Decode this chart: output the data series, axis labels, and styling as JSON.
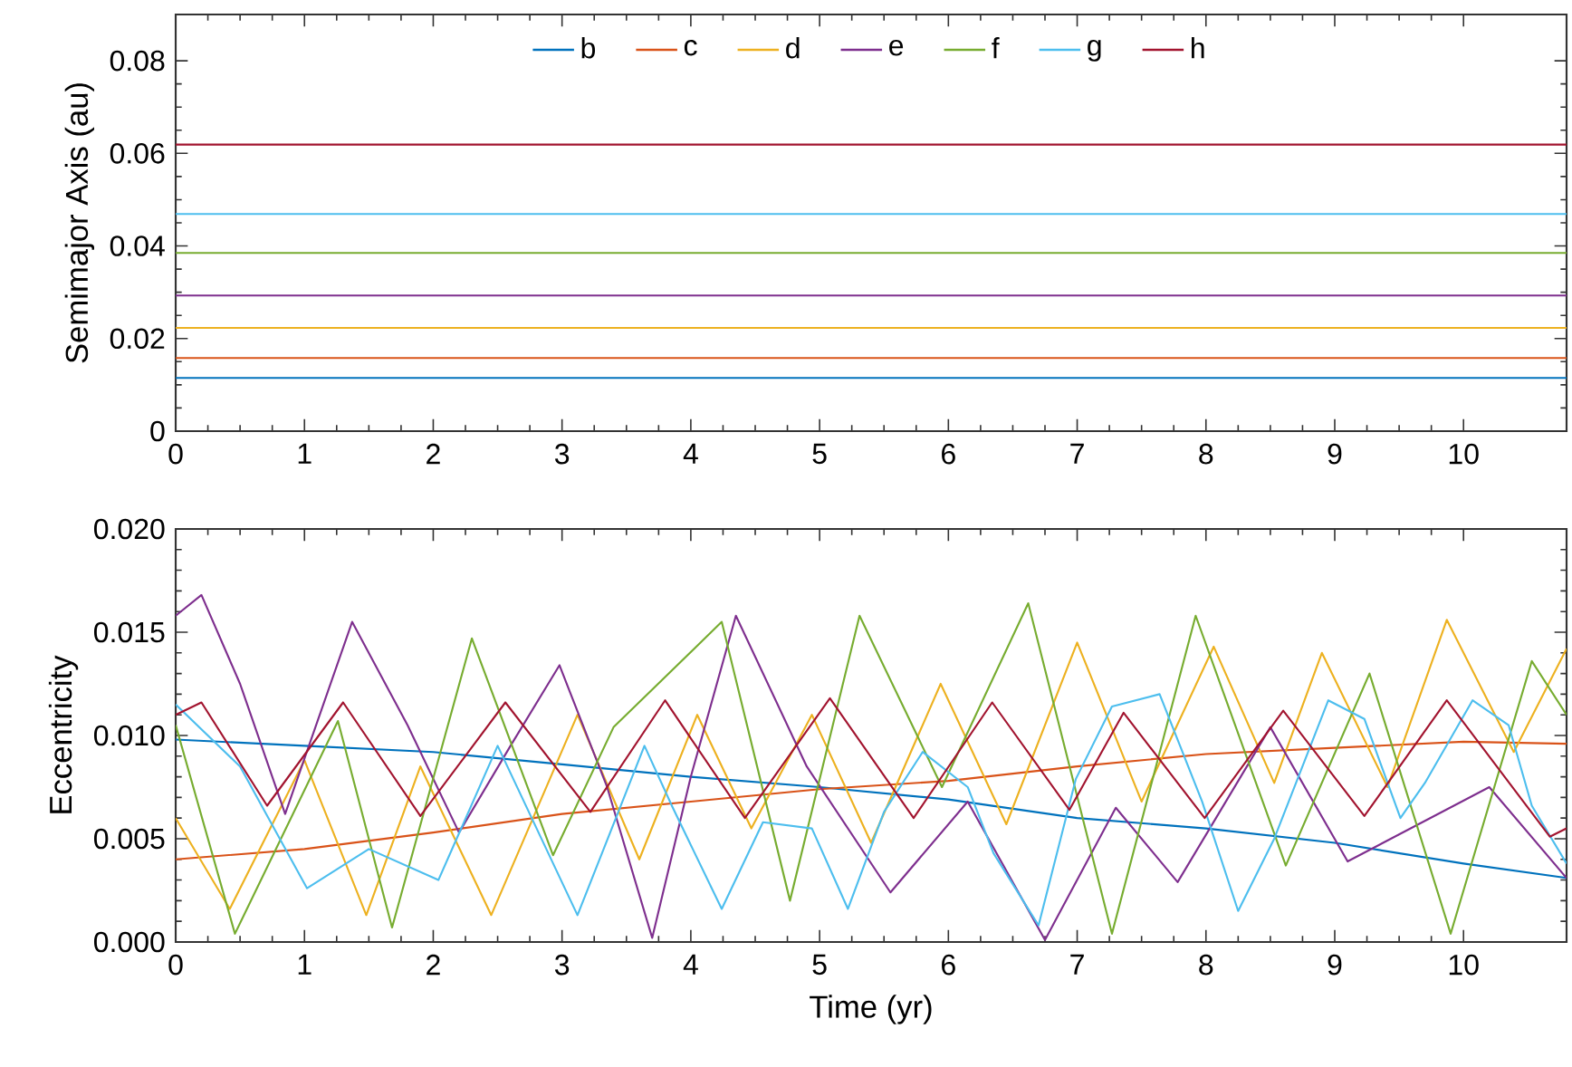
{
  "chart_data": [
    {
      "type": "line",
      "ylabel": "Semimajor Axis (au)",
      "xlim": [
        0,
        10.8
      ],
      "ylim": [
        0,
        0.09
      ],
      "xticks": [
        0,
        1,
        2,
        3,
        4,
        5,
        6,
        7,
        8,
        9,
        10
      ],
      "yticks": [
        0,
        0.02,
        0.04,
        0.06,
        0.08
      ],
      "legend": "top",
      "series": [
        {
          "name": "b",
          "color": "#0072bd",
          "x": [
            0,
            10.8
          ],
          "values": [
            0.0115,
            0.0115
          ]
        },
        {
          "name": "c",
          "color": "#d95319",
          "x": [
            0,
            10.8
          ],
          "values": [
            0.0158,
            0.0158
          ]
        },
        {
          "name": "d",
          "color": "#edb120",
          "x": [
            0,
            10.8
          ],
          "values": [
            0.0223,
            0.0223
          ]
        },
        {
          "name": "e",
          "color": "#7e2f8e",
          "x": [
            0,
            10.8
          ],
          "values": [
            0.0293,
            0.0293
          ]
        },
        {
          "name": "f",
          "color": "#77ac30",
          "x": [
            0,
            10.8
          ],
          "values": [
            0.0385,
            0.0385
          ]
        },
        {
          "name": "g",
          "color": "#4dbeee",
          "x": [
            0,
            10.8
          ],
          "values": [
            0.0469,
            0.0469
          ]
        },
        {
          "name": "h",
          "color": "#a2142f",
          "x": [
            0,
            10.8
          ],
          "values": [
            0.0619,
            0.0619
          ]
        }
      ]
    },
    {
      "type": "line",
      "xlabel": "Time (yr)",
      "ylabel": "Eccentricity",
      "xlim": [
        0,
        10.8
      ],
      "ylim": [
        0,
        0.02
      ],
      "xticks": [
        0,
        1,
        2,
        3,
        4,
        5,
        6,
        7,
        8,
        9,
        10
      ],
      "yticks": [
        {
          "value": 0,
          "label": "0.000"
        },
        {
          "value": 0.005,
          "label": "0.005"
        },
        {
          "value": 0.01,
          "label": "0.010"
        },
        {
          "value": 0.015,
          "label": "0.015"
        },
        {
          "value": 0.02,
          "label": "0.020"
        }
      ],
      "series": [
        {
          "color": "#0072bd",
          "x": [
            0,
            1,
            2,
            3,
            4,
            5,
            6,
            7,
            8,
            9,
            10,
            10.8
          ],
          "values": [
            0.0098,
            0.0095,
            0.0092,
            0.0086,
            0.008,
            0.0075,
            0.0069,
            0.006,
            0.0055,
            0.0048,
            0.0038,
            0.0031
          ]
        },
        {
          "color": "#d95319",
          "x": [
            0,
            1,
            2,
            3,
            4,
            5,
            6,
            7,
            8,
            9,
            10,
            10.8
          ],
          "values": [
            0.004,
            0.0045,
            0.0053,
            0.0062,
            0.0068,
            0.0074,
            0.0078,
            0.0085,
            0.0091,
            0.0094,
            0.0097,
            0.0096
          ]
        },
        {
          "color": "#edb120",
          "x": [
            0,
            0.42,
            1.0,
            1.48,
            1.9,
            2.45,
            3.12,
            3.6,
            4.05,
            4.47,
            4.94,
            5.4,
            5.94,
            6.45,
            7.0,
            7.5,
            8.06,
            8.53,
            8.9,
            9.41,
            9.87,
            10.39,
            10.8
          ],
          "values": [
            0.006,
            0.0016,
            0.0088,
            0.0013,
            0.0085,
            0.0013,
            0.011,
            0.004,
            0.011,
            0.0055,
            0.011,
            0.0048,
            0.0125,
            0.0057,
            0.0145,
            0.0068,
            0.0143,
            0.0077,
            0.014,
            0.0075,
            0.0156,
            0.0092,
            0.0142
          ]
        },
        {
          "color": "#7e2f8e",
          "x": [
            0,
            0.2,
            0.5,
            0.85,
            1.37,
            1.8,
            2.2,
            2.6,
            2.98,
            3.35,
            3.7,
            4.0,
            4.35,
            4.9,
            5.55,
            6.15,
            6.75,
            7.3,
            7.78,
            8.5,
            9.1,
            10.2,
            10.8
          ],
          "values": [
            0.0158,
            0.0168,
            0.0125,
            0.0062,
            0.0155,
            0.0105,
            0.0053,
            0.0095,
            0.0134,
            0.0075,
            0.0002,
            0.008,
            0.0158,
            0.0085,
            0.0024,
            0.0068,
            0.0001,
            0.0065,
            0.0029,
            0.0104,
            0.0039,
            0.0075,
            0.0031
          ]
        },
        {
          "color": "#77ac30",
          "x": [
            0,
            0.46,
            1.26,
            1.68,
            2.3,
            2.93,
            3.4,
            4.24,
            4.77,
            5.31,
            5.95,
            6.62,
            7.27,
            7.92,
            8.62,
            9.27,
            9.9,
            10.53,
            10.8
          ],
          "values": [
            0.0105,
            0.0004,
            0.0107,
            0.0007,
            0.0147,
            0.0042,
            0.0104,
            0.0155,
            0.002,
            0.0158,
            0.0075,
            0.0164,
            0.0004,
            0.0158,
            0.0037,
            0.013,
            0.0004,
            0.0136,
            0.011
          ]
        },
        {
          "color": "#4dbeee",
          "x": [
            0,
            0.5,
            1.02,
            1.5,
            2.04,
            2.5,
            3.12,
            3.64,
            3.86,
            4.24,
            4.56,
            4.94,
            5.22,
            5.5,
            5.8,
            6.15,
            6.35,
            6.7,
            6.99,
            7.27,
            7.64,
            7.97,
            8.25,
            8.53,
            8.95,
            9.23,
            9.51,
            9.7,
            10.07,
            10.35,
            10.53,
            10.8
          ],
          "values": [
            0.0115,
            0.0085,
            0.0026,
            0.0045,
            0.003,
            0.0095,
            0.0013,
            0.0095,
            0.0065,
            0.0016,
            0.0058,
            0.0055,
            0.0016,
            0.0063,
            0.0092,
            0.0075,
            0.0043,
            0.0008,
            0.0079,
            0.0114,
            0.012,
            0.0068,
            0.0015,
            0.005,
            0.0117,
            0.0108,
            0.006,
            0.0077,
            0.0117,
            0.0105,
            0.0066,
            0.0038
          ]
        },
        {
          "color": "#a2142f",
          "x": [
            0,
            0.2,
            0.71,
            1.3,
            1.9,
            2.56,
            3.22,
            3.8,
            4.42,
            5.08,
            5.73,
            6.34,
            6.94,
            7.36,
            7.99,
            8.6,
            9.23,
            9.87,
            10.67,
            10.8
          ],
          "values": [
            0.011,
            0.0116,
            0.0066,
            0.0116,
            0.0061,
            0.0116,
            0.0063,
            0.0117,
            0.006,
            0.0118,
            0.006,
            0.0116,
            0.0064,
            0.0111,
            0.006,
            0.0112,
            0.0061,
            0.0117,
            0.0051,
            0.0055
          ]
        }
      ]
    }
  ]
}
